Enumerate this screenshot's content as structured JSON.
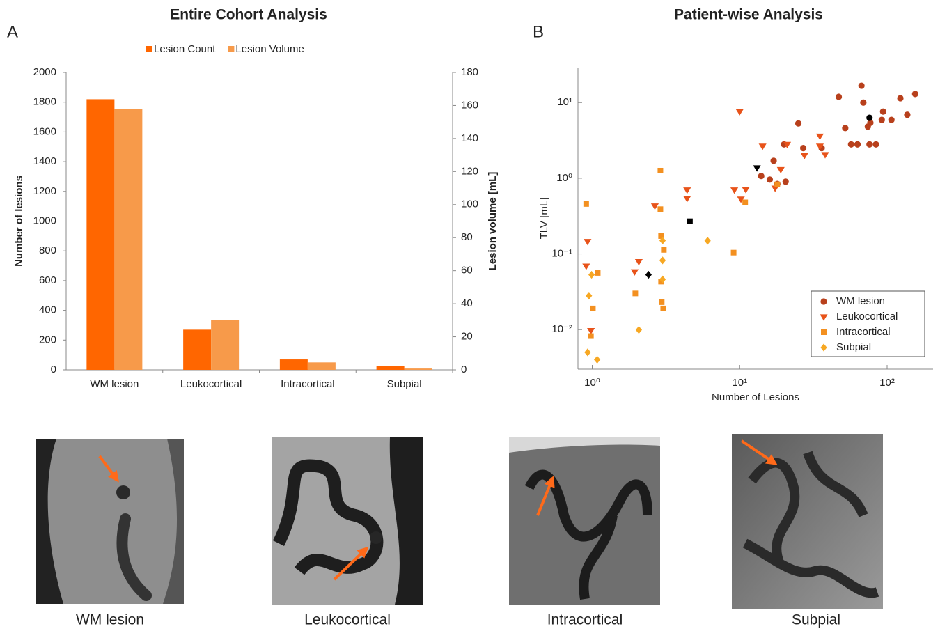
{
  "chart_data": [
    {
      "type": "bar",
      "label": "A",
      "title": "Entire Cohort Analysis",
      "categories": [
        "WM lesion",
        "Leukocortical",
        "Intracortical",
        "Subpial"
      ],
      "series": [
        {
          "name": "Lesion Count",
          "color": "#ff6600",
          "values": [
            1820,
            270,
            70,
            25
          ]
        },
        {
          "name": "Lesion Volume",
          "color": "#f79a4a",
          "axis": "y2",
          "values": [
            158,
            30,
            4.5,
            0.8
          ]
        }
      ],
      "ylabel": "Number of lesions",
      "y2label": "Lesion volume [mL]",
      "ylim": [
        0,
        2000
      ],
      "yticks": [
        0,
        200,
        400,
        600,
        800,
        1000,
        1200,
        1400,
        1600,
        1800,
        2000
      ],
      "y2lim": [
        0,
        180
      ],
      "y2ticks": [
        0,
        20,
        40,
        60,
        80,
        100,
        120,
        140,
        160,
        180
      ],
      "legend": "top"
    },
    {
      "type": "scatter",
      "label": "B",
      "title": "Patient-wise Analysis",
      "xlabel": "Number of Lesions",
      "ylabel": "TLV [mL]",
      "xscale": "log",
      "yscale": "log",
      "xlim": [
        0.8,
        205
      ],
      "ylim": [
        0.003,
        29
      ],
      "xticks": [
        {
          "value": 1,
          "label": "10⁰"
        },
        {
          "value": 10,
          "label": "10¹"
        },
        {
          "value": 100,
          "label": "10²"
        }
      ],
      "yticks": [
        {
          "value": 0.01,
          "label": "10⁻²"
        },
        {
          "value": 0.1,
          "label": "10⁻¹"
        },
        {
          "value": 1,
          "label": "10⁰"
        },
        {
          "value": 10,
          "label": "10¹"
        }
      ],
      "legend": "lower right",
      "highlight_color": "#000000",
      "series": [
        {
          "name": "WM lesion",
          "color": "#b8401c",
          "marker": "circle",
          "x": [
            47,
            67,
            69,
            52,
            63,
            57,
            74,
            77,
            76,
            84,
            94,
            92,
            107,
            123,
            137,
            155,
            25,
            20,
            17,
            14,
            16,
            18,
            20.5,
            27,
            36
          ],
          "y": [
            11.9,
            16.7,
            10,
            4.6,
            2.8,
            2.8,
            4.8,
            5.4,
            2.8,
            2.8,
            7.6,
            5.9,
            5.9,
            11.4,
            6.9,
            13,
            5.3,
            2.8,
            1.7,
            1.07,
            0.96,
            0.84,
            0.9,
            2.5,
            2.5
          ],
          "highlight": {
            "x": 76,
            "y": 6.3
          }
        },
        {
          "name": "Leukocortical",
          "color": "#e8531a",
          "marker": "triangle-down",
          "x": [
            0.93,
            0.91,
            0.98,
            1.94,
            2.07,
            2.66,
            4.4,
            4.4,
            9.2,
            10.2,
            11,
            10,
            14.3,
            21,
            19,
            17.4,
            27.5,
            35,
            38,
            35
          ],
          "y": [
            0.146,
            0.069,
            0.0097,
            0.058,
            0.079,
            0.43,
            0.7,
            0.54,
            0.7,
            0.53,
            0.71,
            7.6,
            2.65,
            2.8,
            1.3,
            0.74,
            2.0,
            3.6,
            2.05,
            2.65
          ],
          "highlight": {
            "x": 13.1,
            "y": 1.37
          }
        },
        {
          "name": "Intracortical",
          "color": "#f39020",
          "marker": "square",
          "x": [
            0.91,
            1.09,
            1.01,
            0.98,
            1.96,
            3.03,
            3.06,
            2.93,
            2.9,
            2.9,
            2.93,
            2.96,
            9.1,
            10.9,
            18
          ],
          "y": [
            0.457,
            0.056,
            0.019,
            0.0082,
            0.03,
            0.019,
            0.113,
            0.043,
            1.26,
            0.39,
            0.172,
            0.023,
            0.104,
            0.48,
            0.83
          ],
          "highlight": {
            "x": 4.6,
            "y": 0.27
          }
        },
        {
          "name": "Subpial",
          "color": "#f7a823",
          "marker": "diamond",
          "x": [
            0.99,
            0.95,
            0.93,
            1.08,
            2.07,
            3.0,
            3.0,
            3.0,
            6.06
          ],
          "y": [
            0.053,
            0.028,
            0.005,
            0.004,
            0.0099,
            0.046,
            0.15,
            0.082,
            0.149
          ],
          "highlight": {
            "x": 2.41,
            "y": 0.053
          }
        }
      ]
    }
  ],
  "images": [
    {
      "caption": "WM lesion"
    },
    {
      "caption": "Leukocortical"
    },
    {
      "caption": "Intracortical"
    },
    {
      "caption": "Subpial"
    }
  ]
}
